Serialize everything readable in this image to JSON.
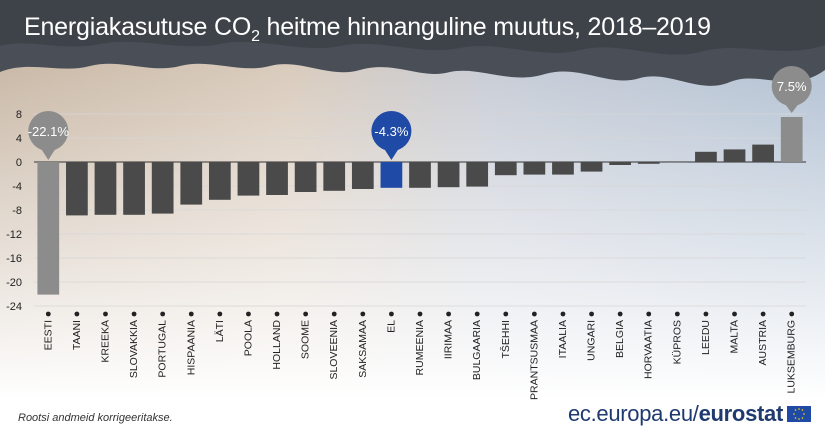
{
  "title": {
    "prefix": "Energiakasutuse CO",
    "sub": "2",
    "suffix": " heitme hinnanguline muutus, 2018–2019"
  },
  "footer": {
    "note": "Rootsi andmeid korrigeeritakse.",
    "brand_domain": "ec.europa.eu/",
    "brand_name": "eurostat"
  },
  "colors": {
    "bar_default": "#4a4a4a",
    "bar_highlight": "#3a3a3a",
    "bar_estonia": "#8c8c8c",
    "bar_luxembourg": "#8c8c8c",
    "bar_eu": "#1f4aa5",
    "callout_grey": "#8c8c8c",
    "callout_eu": "#1f4aa5"
  },
  "chart_data": {
    "type": "bar",
    "categories": [
      "EESTI",
      "TAANI",
      "KREEKA",
      "SLOVAKKIA",
      "PORTUGAL",
      "HISPAANIA",
      "LÄTI",
      "POOLA",
      "HOLLAND",
      "SOOME",
      "SLOVEENIA",
      "SAKSAMAA",
      "EL",
      "RUMEENIA",
      "IIRIMAA",
      "BULGAARIA",
      "TŠEHHI",
      "PRANTSUSMAA",
      "ITAALIA",
      "UNGARI",
      "BELGIA",
      "HORVAATIA",
      "KÜPROS",
      "LEEDU",
      "MALTA",
      "AUSTRIA",
      "LUKSEMBURG"
    ],
    "values": [
      -22.1,
      -8.9,
      -8.8,
      -8.8,
      -8.6,
      -7.1,
      -6.3,
      -5.6,
      -5.5,
      -5.0,
      -4.8,
      -4.5,
      -4.3,
      -4.3,
      -4.2,
      -4.1,
      -2.2,
      -2.1,
      -2.1,
      -1.6,
      -0.5,
      -0.3,
      0.1,
      1.7,
      2.1,
      2.9,
      7.5
    ],
    "ylim": [
      -24,
      8
    ],
    "yticks": [
      -24,
      -20,
      -16,
      -12,
      -8,
      -4,
      0,
      4,
      8
    ],
    "ytick_labels": [
      "-24",
      "-20",
      "-16",
      "-12",
      "-8",
      "-4",
      "0",
      "4",
      "8"
    ],
    "grid": true,
    "callouts": [
      {
        "category": "EESTI",
        "label": "-22.1%"
      },
      {
        "category": "EL",
        "label": "-4.3%"
      },
      {
        "category": "LUKSEMBURG",
        "label": "7.5%"
      }
    ],
    "xlabel": "",
    "ylabel": ""
  }
}
